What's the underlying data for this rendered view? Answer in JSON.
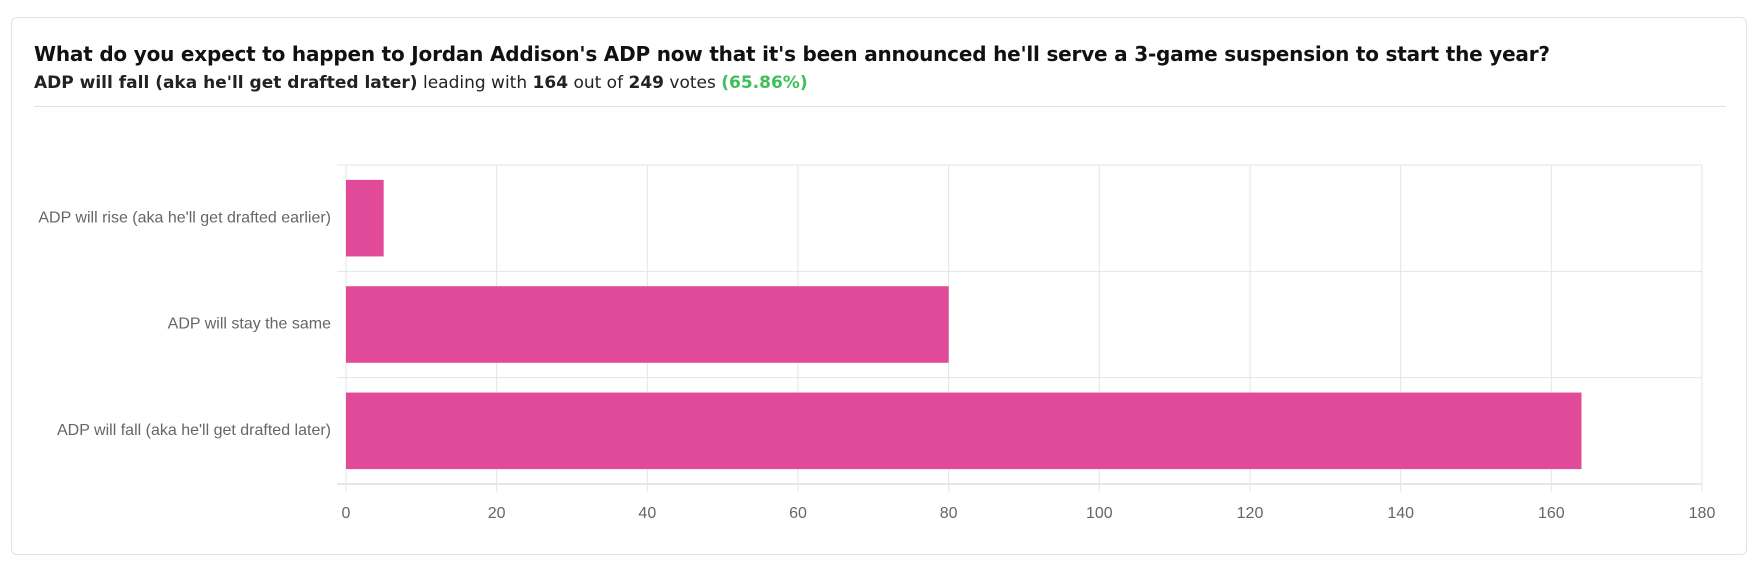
{
  "chart_data": {
    "type": "bar",
    "orientation": "horizontal",
    "title": "What do you expect to happen to Jordan Addison's ADP now that it's been announced he'll serve a 3-game suspension to start the year?",
    "subtitle": {
      "leader": "ADP will fall (aka he'll get drafted later)",
      "leading_text": "leading with",
      "leader_votes": 164,
      "out_of_text": "out of",
      "total_votes": 249,
      "votes_text": "votes",
      "percent": "(65.86%)"
    },
    "categories": [
      "ADP will rise (aka he'll get drafted earlier)",
      "ADP will stay the same",
      "ADP will fall (aka he'll get drafted later)"
    ],
    "values": [
      5,
      80,
      164
    ],
    "color": "#e04a99",
    "xlim": [
      0,
      180
    ],
    "xticks": [
      0,
      20,
      40,
      60,
      80,
      100,
      120,
      140,
      160,
      180
    ],
    "grid": true
  }
}
